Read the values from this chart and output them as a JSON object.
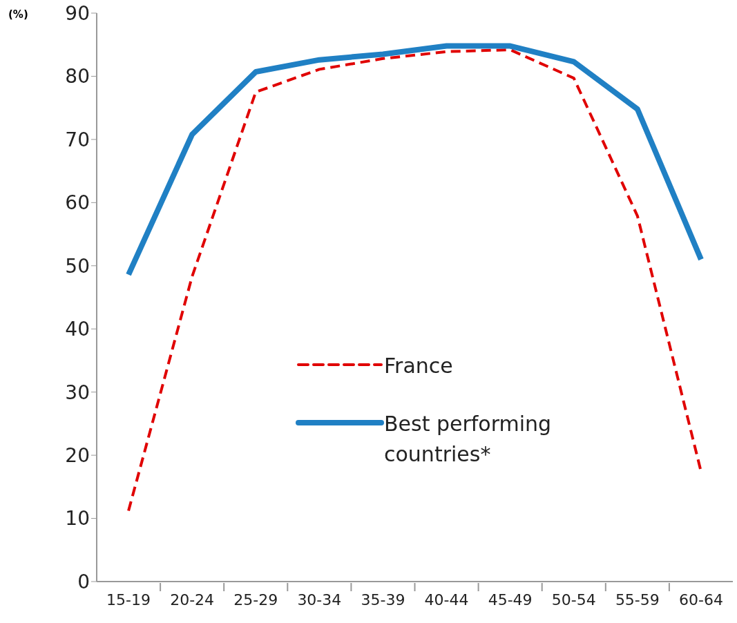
{
  "chart_data": {
    "type": "line",
    "ylabel": "(%)",
    "categories": [
      "15-19",
      "20-24",
      "25-29",
      "30-34",
      "35-39",
      "40-44",
      "45-49",
      "50-54",
      "55-59",
      "60-64"
    ],
    "series": [
      {
        "name": "France",
        "color": "#e00000",
        "line_style": "dashed",
        "values": [
          11.2,
          48.3,
          77.5,
          81.1,
          82.8,
          83.9,
          84.2,
          79.7,
          57.9,
          17.4
        ]
      },
      {
        "name": "Best performing countries*",
        "color": "#2080c4",
        "line_style": "solid",
        "values": [
          48.6,
          70.8,
          80.7,
          82.6,
          83.5,
          84.8,
          84.8,
          82.3,
          74.8,
          51
        ]
      }
    ],
    "ylim": [
      0,
      90
    ],
    "yticks": [
      0,
      10,
      20,
      30,
      40,
      50,
      60,
      70,
      80,
      90
    ],
    "legend": "center",
    "marker": "none"
  }
}
